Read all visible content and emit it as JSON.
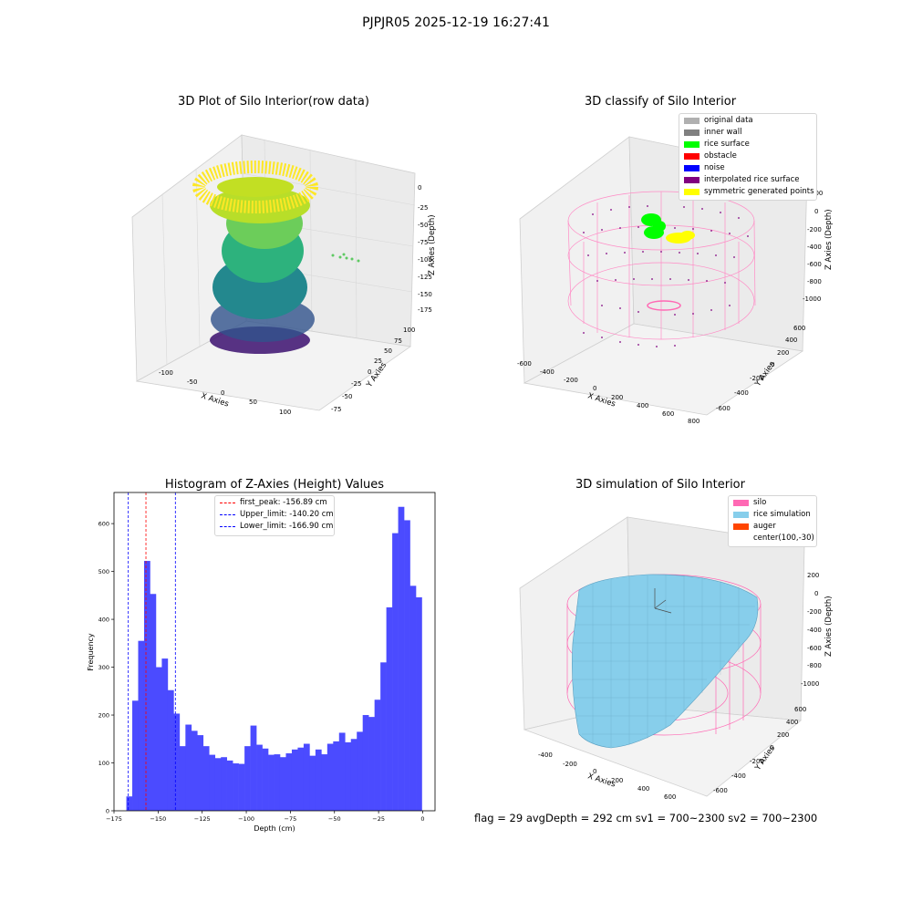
{
  "suptitle": "PJPJR05 2025-12-19 16:27:41",
  "panels": {
    "raw": {
      "title": "3D Plot of Silo Interior(row data)",
      "xlabel": "X Axies",
      "ylabel": "Y Axies",
      "zlabel": "Z Axies (Depth)",
      "xticks": [
        "-100",
        "-50",
        "0",
        "50",
        "100"
      ],
      "yticks": [
        "-75",
        "-50",
        "-25",
        "0",
        "25",
        "50",
        "75",
        "100"
      ],
      "zticks": [
        "0",
        "-25",
        "-50",
        "-75",
        "-100",
        "-125",
        "-150",
        "-175"
      ]
    },
    "classify": {
      "title": "3D classify of Silo Interior",
      "xlabel": "X Axies",
      "ylabel": "Y Axies",
      "zlabel": "Z Axies (Depth)",
      "xticks": [
        "-600",
        "-400",
        "-200",
        "0",
        "200",
        "400",
        "600",
        "800"
      ],
      "yticks": [
        "-600",
        "-400",
        "-200",
        "0",
        "200",
        "400",
        "600"
      ],
      "zticks": [
        "200",
        "0",
        "-200",
        "-400",
        "-600",
        "-800",
        "-1000"
      ],
      "legend": [
        {
          "label": "original data",
          "color": "#b0b0b0"
        },
        {
          "label": "inner wall",
          "color": "#808080"
        },
        {
          "label": "rice surface",
          "color": "#00ff00"
        },
        {
          "label": "obstacle",
          "color": "#ff0000"
        },
        {
          "label": "noise",
          "color": "#0000ff"
        },
        {
          "label": "interpolated rice surface",
          "color": "#800080"
        },
        {
          "label": "symmetric generated points",
          "color": "#ffff00"
        }
      ]
    },
    "simulation": {
      "title": "3D simulation of Silo Interior",
      "xlabel": "X Axies",
      "ylabel": "Y Axies",
      "zlabel": "Z Axies (Depth)",
      "xticks": [
        "-400",
        "-200",
        "0",
        "200",
        "400",
        "600"
      ],
      "yticks": [
        "-600",
        "-400",
        "-200",
        "0",
        "200",
        "400",
        "600"
      ],
      "zticks": [
        "200",
        "0",
        "-200",
        "-400",
        "-600",
        "-800",
        "-1000"
      ],
      "legend": [
        {
          "label": "silo",
          "color": "#ff69b4"
        },
        {
          "label": "rice simulation",
          "color": "#87ceeb"
        },
        {
          "label": "auger",
          "color": "#ff4500"
        },
        {
          "label": "center(100,-30)",
          "color": ""
        }
      ]
    }
  },
  "chart_data": {
    "type": "bar",
    "title": "Histogram of Z-Axies (Height) Values",
    "xlabel": "Depth (cm)",
    "ylabel": "Frequency",
    "xlim": [
      -175,
      7
    ],
    "ylim": [
      0,
      665
    ],
    "xticks": [
      -175,
      -150,
      -125,
      -100,
      -75,
      -50,
      -25,
      0
    ],
    "yticks": [
      0,
      100,
      200,
      300,
      400,
      500,
      600
    ],
    "bar_color": "#4b4bff",
    "bin_start": -168.0,
    "bin_width": 3.35,
    "values": [
      30,
      230,
      355,
      522,
      453,
      300,
      318,
      252,
      203,
      135,
      180,
      167,
      158,
      135,
      117,
      110,
      112,
      105,
      99,
      98,
      135,
      178,
      138,
      130,
      117,
      118,
      112,
      120,
      128,
      132,
      140,
      115,
      128,
      118,
      140,
      145,
      163,
      143,
      150,
      165,
      200,
      196,
      232,
      310,
      425,
      580,
      635,
      607,
      470,
      446
    ],
    "lines": [
      {
        "label": "first_peak: -156.89 cm",
        "x": -156.89,
        "color": "#ff0000"
      },
      {
        "label": "Upper_limit: -140.20 cm",
        "x": -140.2,
        "color": "#0000ff"
      },
      {
        "label": "Lower_limit: -166.90 cm",
        "x": -166.9,
        "color": "#0000ff"
      }
    ]
  },
  "footer": "flag = 29  avgDepth = 292 cm  sv1 = 700~2300  sv2 = 700~2300"
}
